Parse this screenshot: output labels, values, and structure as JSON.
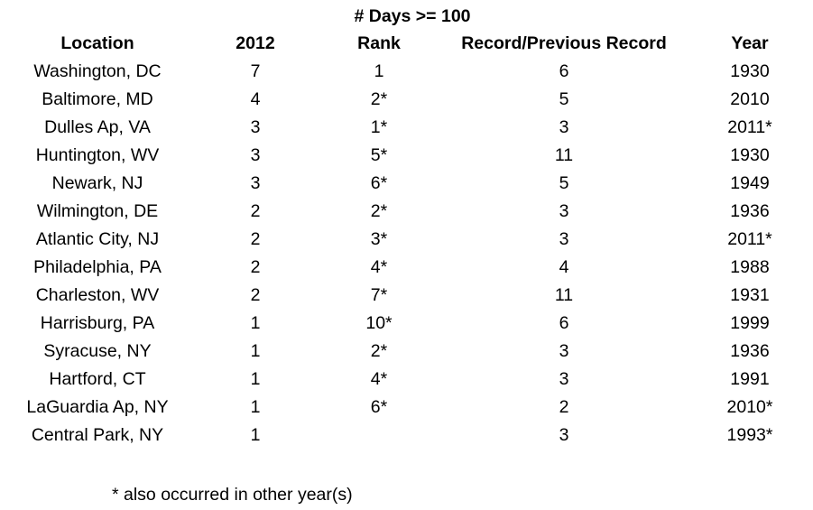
{
  "title": "# Days >= 100",
  "columns": [
    "Location",
    "2012",
    "Rank",
    "Record/Previous Record",
    "Year"
  ],
  "rows": [
    [
      "Washington, DC",
      "7",
      "1",
      "6",
      "1930"
    ],
    [
      "Baltimore, MD",
      "4",
      "2*",
      "5",
      "2010"
    ],
    [
      "Dulles Ap, VA",
      "3",
      "1*",
      "3",
      "2011*"
    ],
    [
      "Huntington, WV",
      "3",
      "5*",
      "11",
      "1930"
    ],
    [
      "Newark, NJ",
      "3",
      "6*",
      "5",
      "1949"
    ],
    [
      "Wilmington, DE",
      "2",
      "2*",
      "3",
      "1936"
    ],
    [
      "Atlantic City, NJ",
      "2",
      "3*",
      "3",
      "2011*"
    ],
    [
      "Philadelphia, PA",
      "2",
      "4*",
      "4",
      "1988"
    ],
    [
      "Charleston, WV",
      "2",
      "7*",
      "11",
      "1931"
    ],
    [
      "Harrisburg, PA",
      "1",
      "10*",
      "6",
      "1999"
    ],
    [
      "Syracuse, NY",
      "1",
      "2*",
      "3",
      "1936"
    ],
    [
      "Hartford, CT",
      "1",
      "4*",
      "3",
      "1991"
    ],
    [
      "LaGuardia Ap, NY",
      "1",
      "6*",
      "2",
      "2010*"
    ],
    [
      "Central Park, NY",
      "1",
      "",
      "3",
      "1993*"
    ]
  ],
  "footnote": "* also occurred in other year(s)"
}
